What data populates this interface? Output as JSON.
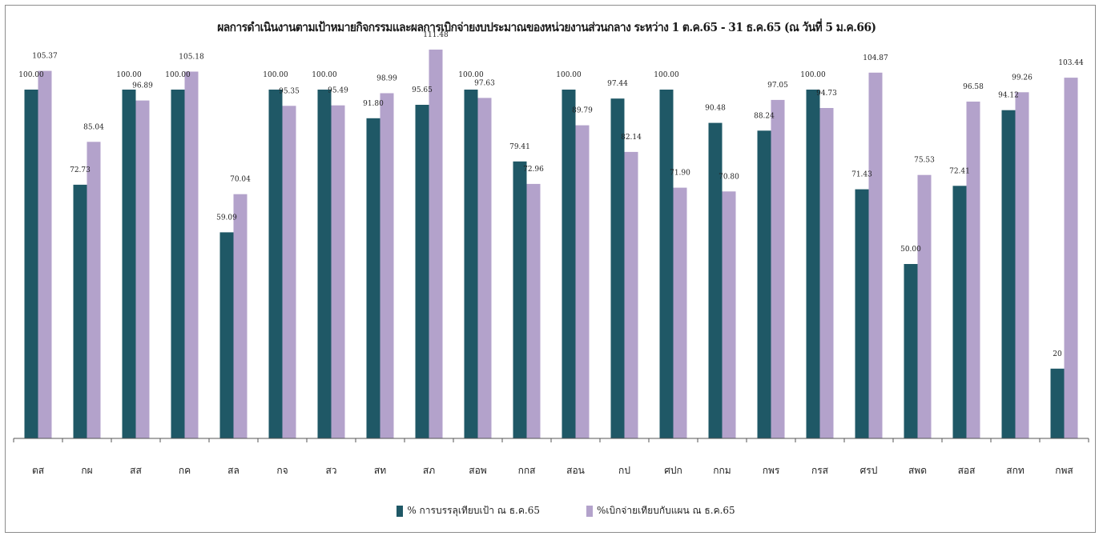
{
  "colors": {
    "series1": "#1f5866",
    "series2": "#b3a2cb",
    "axis": "#555555"
  },
  "chart_data": {
    "type": "bar",
    "title": "ผลการดำเนินงานตามเป้าหมายกิจกรรมและผลการเบิกจ่ายงบประมาณของหน่วยงานส่วนกลาง ระหว่าง 1 ต.ค.65 - 31 ธ.ค.65 (ณ วันที่ 5 ม.ค.66)",
    "categories": [
      "ตส",
      "กผ",
      "สส",
      "กค",
      "สล",
      "กจ",
      "สว",
      "สท",
      "สภ",
      "สอพ",
      "กกส",
      "สอน",
      "กป",
      "ศปก",
      "กกม",
      "กพร",
      "กรส",
      "ศรป",
      "สพด",
      "สอส",
      "สกท",
      "กพส"
    ],
    "series": [
      {
        "name": "% การบรรลุเทียบเป้า ณ ธ.ค.65",
        "values": [
          100.0,
          72.73,
          100.0,
          100.0,
          59.09,
          100.0,
          100.0,
          91.8,
          95.65,
          100.0,
          79.41,
          100.0,
          97.44,
          100.0,
          90.48,
          88.24,
          100.0,
          71.43,
          50.0,
          72.41,
          94.12,
          20
        ],
        "labels": [
          "100.00",
          "72.73",
          "100.00",
          "100.00",
          "59.09",
          "100.00",
          "100.00",
          "91.80",
          "95.65",
          "100.00",
          "79.41",
          "100.00",
          "97.44",
          "100.00",
          "90.48",
          "88.24",
          "100.00",
          "71.43",
          "50.00",
          "72.41",
          "94.12",
          "20"
        ]
      },
      {
        "name": "%เบิกจ่ายเทียบกับแผน ณ ธ.ค.65",
        "values": [
          105.37,
          85.04,
          96.89,
          105.18,
          70.04,
          95.35,
          95.49,
          98.99,
          111.48,
          97.63,
          72.96,
          89.79,
          82.14,
          71.9,
          70.8,
          97.05,
          94.73,
          104.87,
          75.53,
          96.58,
          99.26,
          103.44
        ],
        "labels": [
          "105.37",
          "85.04",
          "96.89",
          "105.18",
          "70.04",
          "95.35",
          "95.49",
          "98.99",
          "111.48",
          "97.63",
          "72.96",
          "89.79",
          "82.14",
          "71.90",
          "70.80",
          "97.05",
          "94.73",
          "104.87",
          "75.53",
          "96.58",
          "99.26",
          "103.44"
        ]
      }
    ],
    "ylim": [
      0,
      111.48
    ],
    "grid": false,
    "legend_position": "bottom"
  }
}
